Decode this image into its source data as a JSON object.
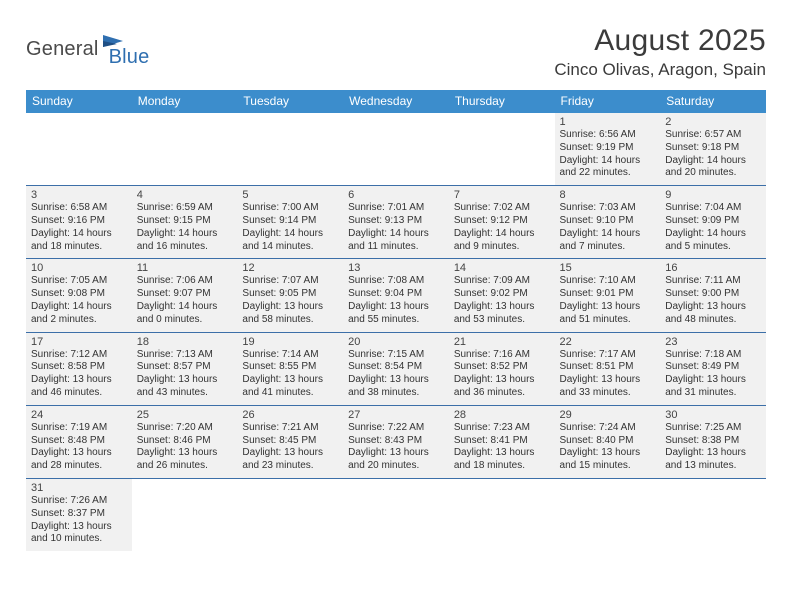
{
  "logo": {
    "text1": "General",
    "text2": "Blue"
  },
  "title": "August 2025",
  "location": "Cinco Olivas, Aragon, Spain",
  "colors": {
    "header_bg": "#3c8dcc",
    "header_text": "#ffffff",
    "cell_border": "#3c6fa8",
    "cell_alt_bg": "#f1f1f1",
    "text": "#333333",
    "logo_gray": "#4a4a4a",
    "logo_blue": "#2f6fb0"
  },
  "day_headers": [
    "Sunday",
    "Monday",
    "Tuesday",
    "Wednesday",
    "Thursday",
    "Friday",
    "Saturday"
  ],
  "weeks": [
    [
      null,
      null,
      null,
      null,
      null,
      {
        "n": "1",
        "sunrise": "6:56 AM",
        "sunset": "9:19 PM",
        "daylight": "14 hours and 22 minutes."
      },
      {
        "n": "2",
        "sunrise": "6:57 AM",
        "sunset": "9:18 PM",
        "daylight": "14 hours and 20 minutes."
      }
    ],
    [
      {
        "n": "3",
        "sunrise": "6:58 AM",
        "sunset": "9:16 PM",
        "daylight": "14 hours and 18 minutes."
      },
      {
        "n": "4",
        "sunrise": "6:59 AM",
        "sunset": "9:15 PM",
        "daylight": "14 hours and 16 minutes."
      },
      {
        "n": "5",
        "sunrise": "7:00 AM",
        "sunset": "9:14 PM",
        "daylight": "14 hours and 14 minutes."
      },
      {
        "n": "6",
        "sunrise": "7:01 AM",
        "sunset": "9:13 PM",
        "daylight": "14 hours and 11 minutes."
      },
      {
        "n": "7",
        "sunrise": "7:02 AM",
        "sunset": "9:12 PM",
        "daylight": "14 hours and 9 minutes."
      },
      {
        "n": "8",
        "sunrise": "7:03 AM",
        "sunset": "9:10 PM",
        "daylight": "14 hours and 7 minutes."
      },
      {
        "n": "9",
        "sunrise": "7:04 AM",
        "sunset": "9:09 PM",
        "daylight": "14 hours and 5 minutes."
      }
    ],
    [
      {
        "n": "10",
        "sunrise": "7:05 AM",
        "sunset": "9:08 PM",
        "daylight": "14 hours and 2 minutes."
      },
      {
        "n": "11",
        "sunrise": "7:06 AM",
        "sunset": "9:07 PM",
        "daylight": "14 hours and 0 minutes."
      },
      {
        "n": "12",
        "sunrise": "7:07 AM",
        "sunset": "9:05 PM",
        "daylight": "13 hours and 58 minutes."
      },
      {
        "n": "13",
        "sunrise": "7:08 AM",
        "sunset": "9:04 PM",
        "daylight": "13 hours and 55 minutes."
      },
      {
        "n": "14",
        "sunrise": "7:09 AM",
        "sunset": "9:02 PM",
        "daylight": "13 hours and 53 minutes."
      },
      {
        "n": "15",
        "sunrise": "7:10 AM",
        "sunset": "9:01 PM",
        "daylight": "13 hours and 51 minutes."
      },
      {
        "n": "16",
        "sunrise": "7:11 AM",
        "sunset": "9:00 PM",
        "daylight": "13 hours and 48 minutes."
      }
    ],
    [
      {
        "n": "17",
        "sunrise": "7:12 AM",
        "sunset": "8:58 PM",
        "daylight": "13 hours and 46 minutes."
      },
      {
        "n": "18",
        "sunrise": "7:13 AM",
        "sunset": "8:57 PM",
        "daylight": "13 hours and 43 minutes."
      },
      {
        "n": "19",
        "sunrise": "7:14 AM",
        "sunset": "8:55 PM",
        "daylight": "13 hours and 41 minutes."
      },
      {
        "n": "20",
        "sunrise": "7:15 AM",
        "sunset": "8:54 PM",
        "daylight": "13 hours and 38 minutes."
      },
      {
        "n": "21",
        "sunrise": "7:16 AM",
        "sunset": "8:52 PM",
        "daylight": "13 hours and 36 minutes."
      },
      {
        "n": "22",
        "sunrise": "7:17 AM",
        "sunset": "8:51 PM",
        "daylight": "13 hours and 33 minutes."
      },
      {
        "n": "23",
        "sunrise": "7:18 AM",
        "sunset": "8:49 PM",
        "daylight": "13 hours and 31 minutes."
      }
    ],
    [
      {
        "n": "24",
        "sunrise": "7:19 AM",
        "sunset": "8:48 PM",
        "daylight": "13 hours and 28 minutes."
      },
      {
        "n": "25",
        "sunrise": "7:20 AM",
        "sunset": "8:46 PM",
        "daylight": "13 hours and 26 minutes."
      },
      {
        "n": "26",
        "sunrise": "7:21 AM",
        "sunset": "8:45 PM",
        "daylight": "13 hours and 23 minutes."
      },
      {
        "n": "27",
        "sunrise": "7:22 AM",
        "sunset": "8:43 PM",
        "daylight": "13 hours and 20 minutes."
      },
      {
        "n": "28",
        "sunrise": "7:23 AM",
        "sunset": "8:41 PM",
        "daylight": "13 hours and 18 minutes."
      },
      {
        "n": "29",
        "sunrise": "7:24 AM",
        "sunset": "8:40 PM",
        "daylight": "13 hours and 15 minutes."
      },
      {
        "n": "30",
        "sunrise": "7:25 AM",
        "sunset": "8:38 PM",
        "daylight": "13 hours and 13 minutes."
      }
    ],
    [
      {
        "n": "31",
        "sunrise": "7:26 AM",
        "sunset": "8:37 PM",
        "daylight": "13 hours and 10 minutes."
      },
      null,
      null,
      null,
      null,
      null,
      null
    ]
  ]
}
